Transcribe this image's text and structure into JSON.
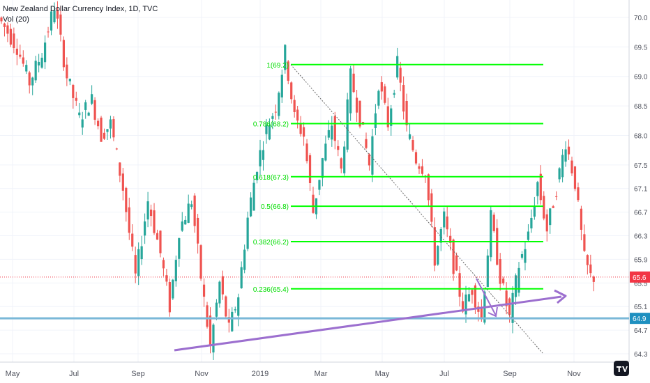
{
  "legend": {
    "title": "New Zealand Dollar Currency Index, 1D, TVC",
    "volume": "Vol (20)"
  },
  "chart_data": {
    "type": "candlestick",
    "title": "New Zealand Dollar Currency Index, 1D, TVC",
    "x_ticks": [
      "May",
      "Jul",
      "Sep",
      "Nov",
      "2019",
      "Mar",
      "May",
      "Jul",
      "Sep",
      "Nov"
    ],
    "y_ticks": [
      70.0,
      69.5,
      69.0,
      68.5,
      68.0,
      67.5,
      67.1,
      66.7,
      66.3,
      65.9,
      65.5,
      65.1,
      64.7,
      64.3
    ],
    "ylim": [
      64.2,
      70.2
    ],
    "last_price": 65.6,
    "support_level": 64.9,
    "fibonacci": [
      {
        "label": "1(69.2)",
        "value": 69.2
      },
      {
        "label": "0.786(68.2)",
        "value": 68.2
      },
      {
        "label": "0.618(67.3)",
        "value": 67.3
      },
      {
        "label": "0.5(66.8)",
        "value": 66.8
      },
      {
        "label": "0.382(66.2)",
        "value": 66.2
      },
      {
        "label": "0.236(65.4)",
        "value": 65.4
      }
    ],
    "price_path": [
      [
        0,
        70.0
      ],
      [
        6,
        69.5
      ],
      [
        10,
        68.9
      ],
      [
        14,
        69.4
      ],
      [
        18,
        70.2
      ],
      [
        22,
        69.0
      ],
      [
        26,
        68.3
      ],
      [
        30,
        68.6
      ],
      [
        33,
        68.0
      ],
      [
        36,
        68.2
      ],
      [
        40,
        67.1
      ],
      [
        44,
        65.6
      ],
      [
        48,
        66.9
      ],
      [
        52,
        66.0
      ],
      [
        55,
        65.1
      ],
      [
        58,
        66.4
      ],
      [
        62,
        66.9
      ],
      [
        65,
        65.6
      ],
      [
        68,
        64.4
      ],
      [
        71,
        65.5
      ],
      [
        74,
        64.7
      ],
      [
        77,
        65.3
      ],
      [
        80,
        66.6
      ],
      [
        83,
        67.5
      ],
      [
        86,
        68.1
      ],
      [
        89,
        68.5
      ],
      [
        92,
        69.4
      ],
      [
        95,
        68.3
      ],
      [
        98,
        68.0
      ],
      [
        101,
        66.7
      ],
      [
        104,
        67.6
      ],
      [
        107,
        68.2
      ],
      [
        110,
        67.4
      ],
      [
        113,
        69.0
      ],
      [
        116,
        68.3
      ],
      [
        119,
        67.5
      ],
      [
        122,
        68.9
      ],
      [
        125,
        68.2
      ],
      [
        128,
        69.2
      ],
      [
        131,
        68.1
      ],
      [
        134,
        67.6
      ],
      [
        137,
        67.4
      ],
      [
        140,
        65.9
      ],
      [
        143,
        66.6
      ],
      [
        146,
        65.8
      ],
      [
        149,
        65.1
      ],
      [
        152,
        65.4
      ],
      [
        155,
        64.9
      ],
      [
        158,
        66.6
      ],
      [
        161,
        65.6
      ],
      [
        164,
        64.9
      ],
      [
        167,
        65.8
      ],
      [
        170,
        66.3
      ],
      [
        173,
        67.2
      ],
      [
        176,
        66.4
      ],
      [
        179,
        67.1
      ],
      [
        182,
        67.9
      ],
      [
        185,
        67.2
      ],
      [
        188,
        65.9
      ],
      [
        190,
        65.6
      ]
    ],
    "colors": {
      "up": "#26a69a",
      "down": "#ef5350",
      "fib": "#00ff00",
      "fib_label": "#00dd00",
      "trendline": "#9c6fcf",
      "support": "#7ab8d8",
      "last_price": "#f23645"
    }
  }
}
